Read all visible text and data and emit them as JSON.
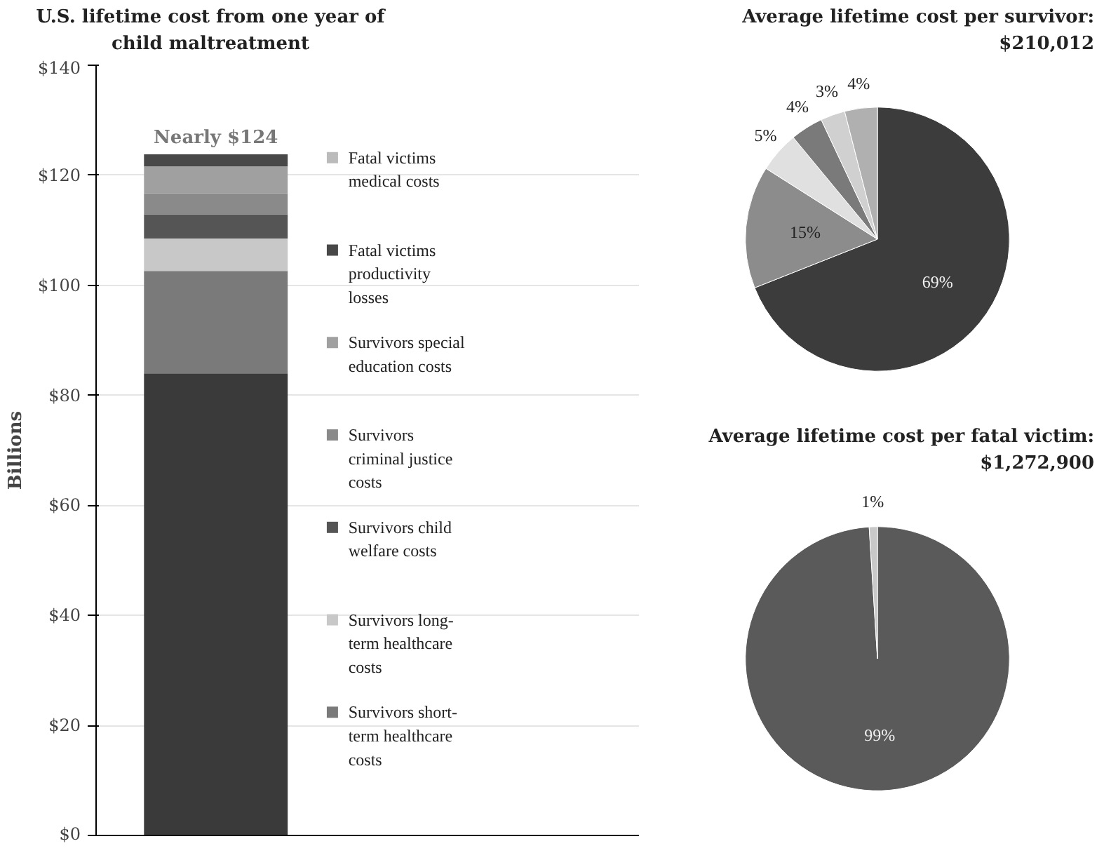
{
  "chart_data": [
    {
      "type": "bar",
      "stacked": true,
      "title": "U.S. lifetime cost from one year of child maltreatment",
      "ylabel": "Billions",
      "categories": [
        null
      ],
      "series": [
        {
          "color": "#3a3a3a",
          "values": [
            84
          ]
        },
        {
          "name": "Survivors short-term healthcare costs",
          "color": "#7a7a7a",
          "values": [
            18.6
          ]
        },
        {
          "name": "Survivors long-term healthcare costs",
          "color": "#c8c8c8",
          "values": [
            5.9
          ]
        },
        {
          "name": "Survivors child welfare costs",
          "color": "#555555",
          "values": [
            4.4
          ]
        },
        {
          "name": "Survivors criminal justice costs",
          "color": "#8a8a8a",
          "values": [
            3.8
          ]
        },
        {
          "name": "Survivors special education costs",
          "color": "#a0a0a0",
          "values": [
            4.9
          ]
        },
        {
          "name": "Fatal victims productivity losses",
          "color": "#484848",
          "values": [
            2.2
          ]
        },
        {
          "name": "Fatal victims medical costs",
          "color": "#bbbbbb",
          "values": [
            null
          ]
        }
      ],
      "ylim": [
        0,
        140
      ],
      "yticks": [
        {
          "value": 0,
          "label": "$0"
        },
        {
          "value": 20,
          "label": "$20"
        },
        {
          "value": 40,
          "label": "$40"
        },
        {
          "value": 60,
          "label": "$60"
        },
        {
          "value": 80,
          "label": "$80"
        },
        {
          "value": 100,
          "label": "$100"
        },
        {
          "value": 120,
          "label": "$120"
        },
        {
          "value": 140,
          "label": "$140"
        }
      ],
      "grid": "y",
      "legend": "right",
      "tick_labels": "y",
      "annotations": [
        {
          "text": "Nearly $124",
          "y": 124
        }
      ]
    },
    {
      "type": "pie",
      "title": "Average lifetime cost per survivor: $210,012",
      "categories": [
        null,
        null,
        null,
        null,
        null,
        null
      ],
      "values": [
        69,
        15,
        5,
        4,
        3,
        4
      ],
      "colors": [
        "#3c3c3c",
        "#8c8c8c",
        "#e0e0e0",
        "#7a7a7a",
        "#d0d0d0",
        "#b0b0b0"
      ],
      "value_labels": [
        "69%",
        "15%",
        "5%",
        "4%",
        "3%",
        "4%"
      ]
    },
    {
      "type": "pie",
      "title": "Average lifetime cost per fatal victim: $1,272,900",
      "categories": [
        null,
        null
      ],
      "values": [
        99,
        1
      ],
      "colors": [
        "#5a5a5a",
        "#c8c8c8"
      ],
      "value_labels": [
        "99%",
        "1%"
      ]
    }
  ]
}
